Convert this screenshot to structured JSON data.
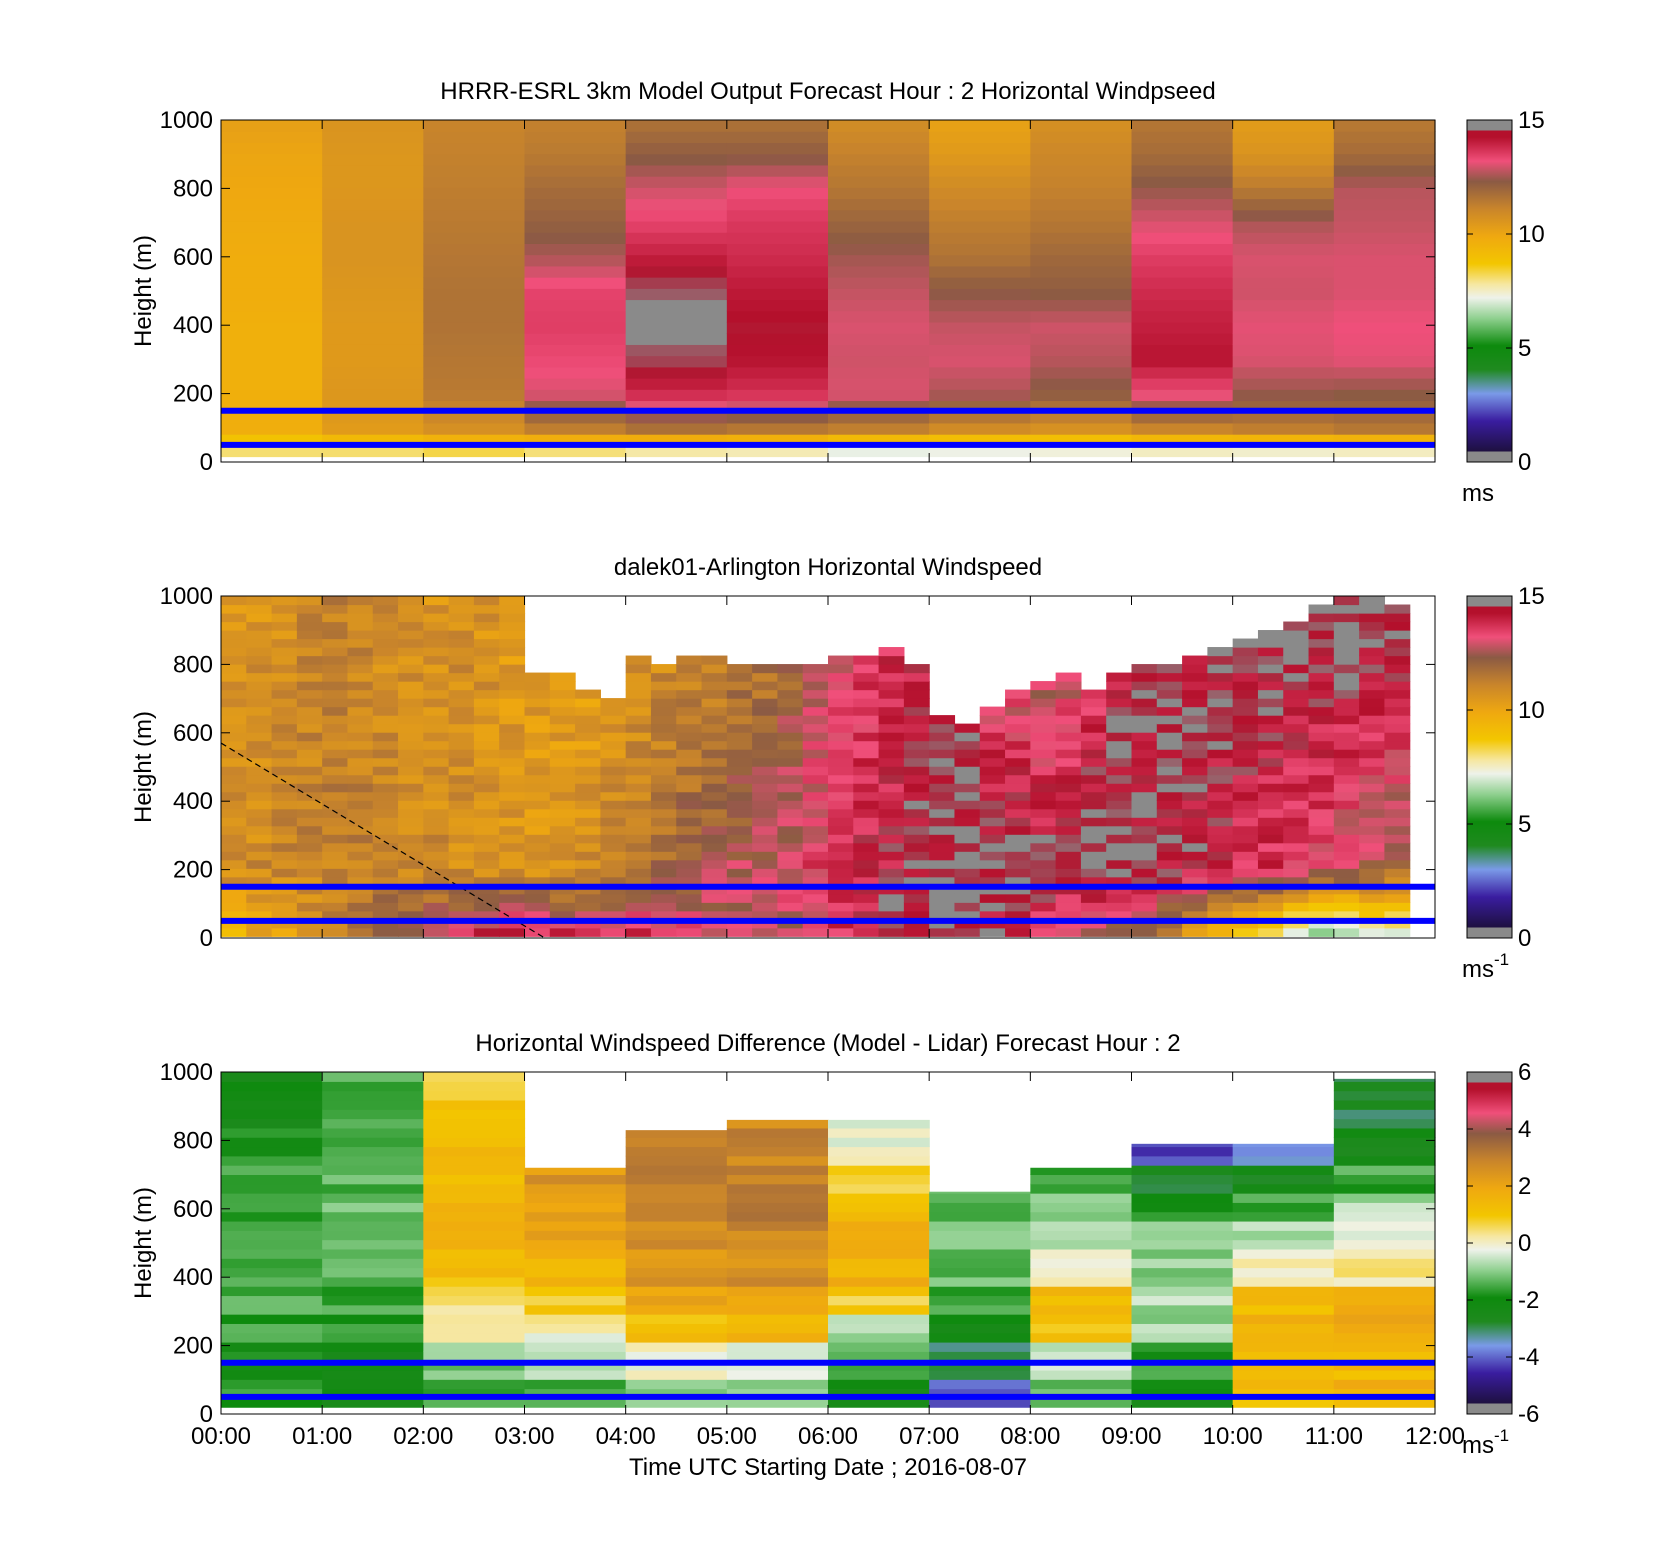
{
  "chart_data": [
    {
      "type": "heatmap",
      "title": "HRRR-ESRL 3km Model Output   Forecast Hour : 2 Horizontal Windpseed",
      "ylabel": "Height (m)",
      "xlabel": "",
      "colorbar_label": "ms",
      "colorbar_sup": "",
      "colormap": "wind",
      "clim": [
        0,
        15
      ],
      "colorbar_ticks": [
        "0",
        "5",
        "10",
        "15"
      ],
      "colorbar_tick_values": [
        0,
        5,
        10,
        15
      ],
      "ylim": [
        0,
        1000
      ],
      "y_ticks": [
        "0",
        "200",
        "400",
        "600",
        "800",
        "1000"
      ],
      "y_tick_values": [
        0,
        200,
        400,
        600,
        800,
        1000
      ],
      "x_ticks": [
        "00:00",
        "01:00",
        "02:00",
        "03:00",
        "04:00",
        "05:00",
        "06:00",
        "07:00",
        "08:00",
        "09:00",
        "10:00",
        "11:00",
        "12:00"
      ],
      "show_x_tick_labels": false,
      "reference_lines_m": [
        150,
        50
      ],
      "grid": false,
      "column_hours": [
        0,
        1,
        2,
        3,
        4,
        5,
        6,
        7,
        8,
        9,
        10,
        11
      ],
      "height_levels_m": [
        30,
        100,
        200,
        300,
        400,
        500,
        600,
        700,
        800,
        900,
        1000
      ],
      "values_ms_by_column": [
        [
          8.0,
          9.7,
          9.6,
          9.6,
          9.6,
          9.7,
          9.7,
          9.8,
          9.9,
          10.0,
          10.2
        ],
        [
          8.0,
          10.4,
          10.5,
          10.4,
          10.4,
          10.5,
          10.6,
          10.6,
          10.5,
          10.5,
          10.6
        ],
        [
          8.2,
          10.8,
          11.4,
          11.5,
          11.6,
          11.6,
          11.5,
          11.4,
          11.3,
          11.2,
          11.1
        ],
        [
          7.9,
          11.4,
          13.0,
          13.3,
          13.5,
          13.4,
          12.6,
          12.1,
          11.8,
          11.4,
          11.2
        ],
        [
          7.6,
          11.8,
          13.8,
          14.6,
          14.9,
          14.7,
          14.0,
          13.4,
          12.9,
          12.2,
          11.6
        ],
        [
          7.5,
          11.6,
          13.7,
          14.2,
          14.3,
          14.1,
          13.8,
          13.6,
          13.2,
          12.2,
          11.6
        ],
        [
          7.0,
          11.4,
          13.0,
          12.9,
          13.0,
          12.8,
          12.5,
          12.0,
          11.5,
          11.2,
          10.8
        ],
        [
          7.1,
          11.0,
          12.6,
          13.0,
          12.8,
          12.3,
          11.6,
          11.3,
          10.9,
          10.4,
          10.1
        ],
        [
          7.2,
          10.8,
          12.2,
          12.7,
          12.9,
          12.2,
          11.9,
          11.5,
          11.2,
          11.0,
          10.7
        ],
        [
          7.4,
          11.2,
          13.2,
          14.2,
          14.0,
          13.8,
          13.5,
          13.0,
          12.4,
          11.8,
          11.5
        ],
        [
          7.3,
          11.4,
          12.4,
          13.0,
          13.1,
          12.9,
          13.0,
          12.6,
          11.4,
          10.6,
          10.3
        ],
        [
          7.4,
          11.6,
          12.3,
          13.1,
          13.2,
          13.0,
          13.0,
          12.8,
          12.7,
          11.8,
          11.4
        ]
      ]
    },
    {
      "type": "heatmap",
      "title": "dalek01-Arlington  Horizontal Windspeed",
      "ylabel": "Height (m)",
      "xlabel": "",
      "colorbar_label": "ms",
      "colorbar_sup": "-1",
      "colormap": "wind",
      "clim": [
        0,
        15
      ],
      "colorbar_ticks": [
        "0",
        "5",
        "10",
        "15"
      ],
      "colorbar_tick_values": [
        0,
        5,
        10,
        15
      ],
      "ylim": [
        0,
        1000
      ],
      "y_ticks": [
        "0",
        "200",
        "400",
        "600",
        "800",
        "1000"
      ],
      "y_tick_values": [
        0,
        200,
        400,
        600,
        800,
        1000
      ],
      "x_ticks": [
        "00:00",
        "01:00",
        "02:00",
        "03:00",
        "04:00",
        "05:00",
        "06:00",
        "07:00",
        "08:00",
        "09:00",
        "10:00",
        "11:00",
        "12:00"
      ],
      "show_x_tick_labels": false,
      "reference_lines_m": [
        150,
        50
      ],
      "grid": false,
      "dashed_line": {
        "x_hours": [
          0.0,
          3.2
        ],
        "y_m": [
          570,
          0
        ]
      },
      "profile_times_h": [
        0.25,
        0.5,
        0.75,
        1.0,
        1.25,
        1.5,
        1.75,
        2.0,
        2.25,
        2.5,
        2.75,
        3.0,
        3.25,
        3.5,
        3.75,
        4.0,
        4.25,
        4.5,
        4.75,
        5.0,
        5.25,
        5.5,
        5.75,
        6.0,
        6.25,
        6.5,
        6.75,
        7.0,
        7.25,
        7.5,
        7.75,
        8.0,
        8.25,
        8.5,
        8.75,
        9.0,
        9.25,
        9.5,
        9.75,
        10.0,
        10.25,
        10.5,
        10.75,
        11.0,
        11.25,
        11.5,
        11.75
      ],
      "top_of_data_m": [
        1000,
        1000,
        1000,
        1000,
        1000,
        1000,
        1000,
        1000,
        1000,
        1000,
        1000,
        1000,
        760,
        760,
        720,
        690,
        810,
        800,
        820,
        810,
        800,
        800,
        790,
        800,
        820,
        820,
        830,
        780,
        640,
        620,
        660,
        710,
        740,
        770,
        720,
        760,
        780,
        800,
        820,
        840,
        860,
        880,
        920,
        960,
        1000,
        1000,
        960
      ],
      "surface_ms": [
        9.5,
        9.8,
        10.2,
        10.6,
        11.0,
        11.6,
        12.2,
        12.8,
        13.2,
        13.6,
        14.0,
        14.2,
        14.0,
        13.8,
        13.6,
        13.6,
        13.8,
        13.6,
        13.2,
        13.0,
        12.8,
        12.6,
        12.8,
        13.2,
        13.6,
        14.0,
        14.4,
        14.8,
        14.9,
        14.6,
        14.2,
        13.8,
        13.4,
        13.0,
        12.6,
        12.0,
        11.4,
        10.6,
        9.8,
        8.8,
        8.0,
        7.2,
        6.6,
        6.0,
        5.8,
        6.2,
        6.8
      ],
      "mid_ms": [
        10.8,
        10.9,
        11.0,
        11.1,
        11.2,
        11.2,
        11.1,
        11.0,
        10.9,
        10.8,
        10.7,
        10.6,
        10.6,
        10.7,
        10.8,
        11.0,
        11.4,
        11.8,
        12.2,
        12.4,
        12.6,
        12.8,
        13.0,
        13.4,
        13.8,
        14.0,
        14.2,
        14.4,
        14.6,
        14.8,
        14.8,
        14.8,
        14.6,
        14.6,
        14.8,
        14.8,
        14.6,
        14.4,
        14.2,
        14.0,
        13.8,
        13.6,
        13.2,
        13.0,
        12.8,
        12.4,
        12.0
      ],
      "top_ms": [
        10.4,
        10.6,
        10.8,
        11.0,
        11.2,
        11.0,
        10.8,
        10.6,
        10.6,
        10.8,
        10.6,
        10.4,
        10.2,
        10.0,
        10.0,
        10.2,
        10.4,
        10.6,
        10.6,
        10.8,
        11.0,
        11.2,
        11.6,
        12.2,
        12.8,
        13.2,
        13.6,
        14.0,
        14.2,
        14.4,
        12.4,
        12.0,
        11.8,
        12.2,
        13.0,
        14.0,
        14.4,
        14.6,
        14.6,
        14.8,
        14.8,
        14.8,
        15.0,
        15.0,
        15.0,
        15.0,
        15.0
      ]
    },
    {
      "type": "heatmap",
      "title": "Horizontal Windspeed Difference (Model - Lidar) Forecast Hour : 2",
      "ylabel": "Height (m)",
      "xlabel": "Time UTC  Starting Date ; 2016-08-07",
      "colorbar_label": "ms",
      "colorbar_sup": "-1",
      "colormap": "diff",
      "clim": [
        -6,
        6
      ],
      "colorbar_ticks": [
        "-6",
        "-4",
        "-2",
        "0",
        "2",
        "4",
        "6"
      ],
      "colorbar_tick_values": [
        -6,
        -4,
        -2,
        0,
        2,
        4,
        6
      ],
      "ylim": [
        0,
        1000
      ],
      "y_ticks": [
        "0",
        "200",
        "400",
        "600",
        "800",
        "1000"
      ],
      "y_tick_values": [
        0,
        200,
        400,
        600,
        800,
        1000
      ],
      "x_ticks": [
        "00:00",
        "01:00",
        "02:00",
        "03:00",
        "04:00",
        "05:00",
        "06:00",
        "07:00",
        "08:00",
        "09:00",
        "10:00",
        "11:00",
        "12:00"
      ],
      "show_x_tick_labels": true,
      "reference_lines_m": [
        150,
        50
      ],
      "grid": false,
      "column_hours": [
        0,
        1,
        2,
        3,
        4,
        5,
        6,
        7,
        8,
        9,
        10,
        11
      ],
      "top_of_data_m": [
        1000,
        1000,
        1000,
        720,
        830,
        860,
        860,
        650,
        720,
        790,
        790,
        980
      ],
      "mean_difference_ms": [
        -2.1,
        -1.5,
        1.0,
        1.9,
        2.6,
        2.5,
        0.8,
        -1.2,
        -0.9,
        -1.8,
        -1.2,
        -0.2
      ],
      "difference_profiles_ms": [
        [
          -1.8,
          -2.0,
          -1.6,
          -1.4,
          -1.3,
          -1.4,
          -1.5,
          -1.7,
          -1.9,
          -2.2,
          -2.4,
          -2.6
        ],
        [
          -2.2,
          -2.4,
          -1.8,
          -1.6,
          -1.4,
          -1.3,
          -1.2,
          -1.3,
          -1.4,
          -1.6,
          -1.6,
          -1.7
        ],
        [
          -1.6,
          -1.0,
          0.0,
          0.5,
          1.2,
          1.4,
          1.4,
          1.3,
          1.2,
          1.0,
          0.6,
          0.2
        ],
        [
          -1.4,
          -0.6,
          0.0,
          0.8,
          1.6,
          2.0,
          2.2,
          2.4,
          null,
          null,
          null,
          null
        ],
        [
          -0.8,
          -0.2,
          1.2,
          2.0,
          2.4,
          2.8,
          3.0,
          3.2,
          2.8,
          null,
          null,
          null
        ],
        [
          -1.2,
          -0.4,
          1.4,
          2.2,
          2.6,
          2.8,
          3.0,
          3.0,
          2.8,
          null,
          null,
          null
        ],
        [
          -2.4,
          -1.2,
          -0.6,
          0.8,
          1.6,
          1.5,
          1.2,
          0.8,
          -0.2,
          null,
          null,
          null
        ],
        [
          -4.0,
          -3.0,
          -2.4,
          -1.6,
          -1.2,
          -1.0,
          -1.4,
          null,
          null,
          null,
          null,
          null
        ],
        [
          -1.2,
          -0.6,
          1.2,
          1.4,
          0.2,
          -0.6,
          -1.2,
          -1.6,
          null,
          null,
          null,
          null
        ],
        [
          -2.2,
          -1.8,
          -0.8,
          -0.8,
          -1.0,
          -1.2,
          -1.8,
          -2.6,
          -4.2,
          null,
          null,
          null
        ],
        [
          1.2,
          1.4,
          1.6,
          1.2,
          0.2,
          -0.6,
          -1.4,
          -2.6,
          -3.4,
          null,
          null,
          null
        ],
        [
          1.6,
          1.4,
          1.8,
          1.6,
          0.2,
          -0.2,
          -0.8,
          -1.6,
          -2.4,
          -2.8,
          -3.0,
          -3.8
        ]
      ]
    }
  ]
}
